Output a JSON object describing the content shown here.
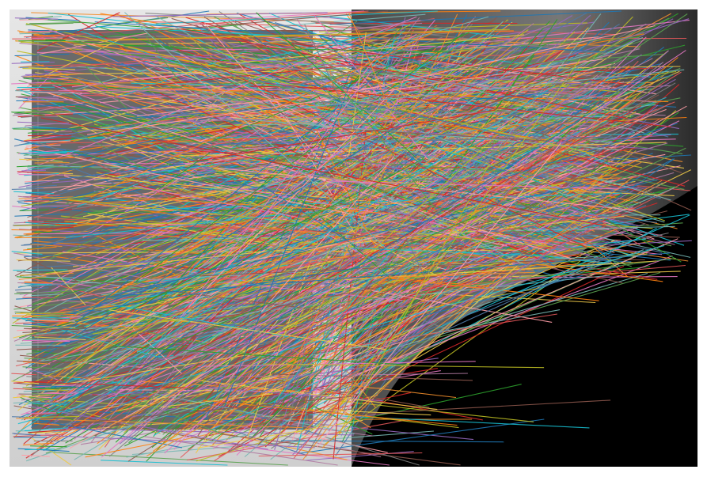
{
  "figure": {
    "description_type": "feature-match-visualization",
    "left_panel_icon": "document-photo-icon",
    "right_panel_icon": "dark-night-scene-icon",
    "palette": [
      "#1f77b4",
      "#ff7f0e",
      "#2ca02c",
      "#d62728",
      "#9467bd",
      "#8c564b",
      "#e377c2",
      "#17becf",
      "#bcbd22",
      "#7f7f7f",
      "#4e79a7",
      "#f28e2b",
      "#e15759",
      "#76b7b2",
      "#59a14f",
      "#edc948",
      "#b07aa1",
      "#ff9da7"
    ],
    "panel_colors": {
      "left_background": "#d9d9d9",
      "left_document": "#5a5a5a",
      "right_background": "#000000",
      "right_gradient_top": "#6f6f6f",
      "page_background": "#ffffff"
    }
  }
}
